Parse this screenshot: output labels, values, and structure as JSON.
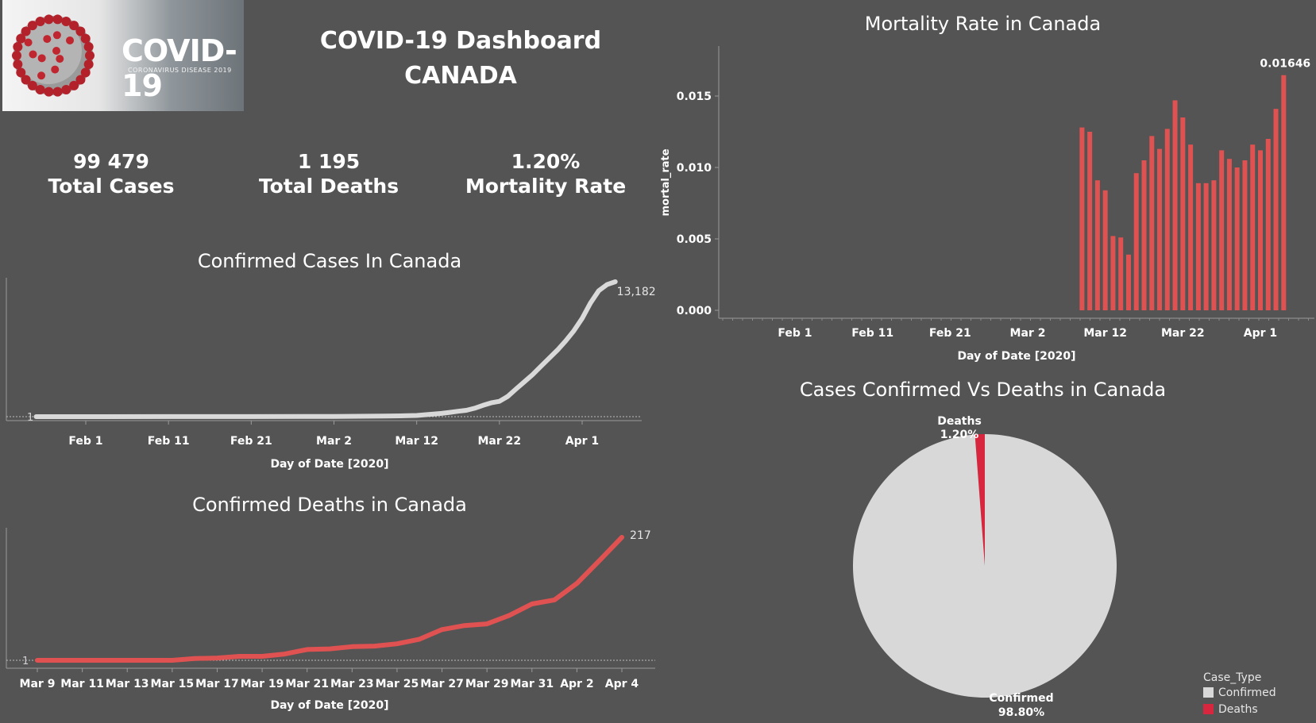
{
  "logo": {
    "title": "COVID-19",
    "subtitle": "CORONAVIRUS DISEASE 2019"
  },
  "header": {
    "title_line1": "COVID-19 Dashboard",
    "title_line2": "CANADA"
  },
  "kpis": [
    {
      "value": "99 479",
      "label": "Total Cases"
    },
    {
      "value": "1 195",
      "label": "Total Deaths"
    },
    {
      "value": "1.20%",
      "label": "Mortality Rate"
    }
  ],
  "colors": {
    "background": "#545454",
    "cases_line": "#d9d9d9",
    "deaths_line": "#e05252",
    "bars": "#e05252",
    "pie_confirmed": "#d8d8d8",
    "pie_deaths": "#d7263d"
  },
  "chart_data": [
    {
      "id": "confirmed_cases",
      "type": "line",
      "title": "Confirmed Cases In Canada",
      "xlabel": "Day of Date [2020]",
      "x_ticks": [
        "Feb 1",
        "Feb 11",
        "Feb 21",
        "Mar 2",
        "Mar 12",
        "Mar 22",
        "Apr 1"
      ],
      "y_ref_label": "1",
      "end_label": "13,182",
      "x": [
        "Jan 26",
        "Feb 1",
        "Feb 11",
        "Feb 21",
        "Mar 2",
        "Mar 5",
        "Mar 8",
        "Mar 10",
        "Mar 12",
        "Mar 13",
        "Mar 14",
        "Mar 15",
        "Mar 16",
        "Mar 17",
        "Mar 18",
        "Mar 19",
        "Mar 20",
        "Mar 21",
        "Mar 22",
        "Mar 23",
        "Mar 24",
        "Mar 25",
        "Mar 26",
        "Mar 27",
        "Mar 28",
        "Mar 29",
        "Mar 30",
        "Mar 31",
        "Apr 1",
        "Apr 2",
        "Apr 3",
        "Apr 4",
        "Apr 5"
      ],
      "values": [
        1,
        4,
        7,
        8,
        25,
        40,
        60,
        80,
        120,
        190,
        250,
        320,
        420,
        530,
        620,
        820,
        1100,
        1350,
        1500,
        1980,
        2700,
        3400,
        4100,
        4900,
        5700,
        6500,
        7400,
        8400,
        9600,
        11100,
        12300,
        12900,
        13182
      ]
    },
    {
      "id": "confirmed_deaths",
      "type": "line",
      "title": "Confirmed Deaths in Canada",
      "xlabel": "Day of Date [2020]",
      "x_ticks": [
        "Mar 9",
        "Mar 11",
        "Mar 13",
        "Mar 15",
        "Mar 17",
        "Mar 19",
        "Mar 21",
        "Mar 23",
        "Mar 25",
        "Mar 27",
        "Mar 29",
        "Mar 31",
        "Apr 2",
        "Apr 4"
      ],
      "y_ref_label": "1",
      "end_label": "217",
      "x": [
        "Mar 9",
        "Mar 10",
        "Mar 11",
        "Mar 12",
        "Mar 13",
        "Mar 14",
        "Mar 15",
        "Mar 16",
        "Mar 17",
        "Mar 18",
        "Mar 19",
        "Mar 20",
        "Mar 21",
        "Mar 22",
        "Mar 23",
        "Mar 24",
        "Mar 25",
        "Mar 26",
        "Mar 27",
        "Mar 28",
        "Mar 29",
        "Mar 30",
        "Mar 31",
        "Apr 1",
        "Apr 2",
        "Apr 3",
        "Apr 4"
      ],
      "values": [
        1,
        1,
        1,
        1,
        1,
        1,
        1,
        4,
        5,
        8,
        8,
        12,
        20,
        21,
        25,
        26,
        30,
        38,
        55,
        62,
        65,
        80,
        100,
        107,
        136,
        176,
        217
      ]
    },
    {
      "id": "mortality_rate",
      "type": "bar",
      "title": "Mortality Rate in Canada",
      "xlabel": "Day of Date [2020]",
      "ylabel": "mortal_rate",
      "x_ticks": [
        "Feb 1",
        "Feb 11",
        "Feb 21",
        "Mar 2",
        "Mar 12",
        "Mar 22",
        "Apr 1"
      ],
      "y_ticks": [
        "0.000",
        "0.005",
        "0.010",
        "0.015"
      ],
      "ylim": [
        0,
        0.0175
      ],
      "end_label": "0.01646",
      "x": [
        "Mar 9",
        "Mar 10",
        "Mar 11",
        "Mar 12",
        "Mar 13",
        "Mar 14",
        "Mar 15",
        "Mar 16",
        "Mar 17",
        "Mar 18",
        "Mar 19",
        "Mar 20",
        "Mar 21",
        "Mar 22",
        "Mar 23",
        "Mar 24",
        "Mar 25",
        "Mar 26",
        "Mar 27",
        "Mar 28",
        "Mar 29",
        "Mar 30",
        "Mar 31",
        "Apr 1",
        "Apr 2",
        "Apr 3",
        "Apr 4"
      ],
      "values": [
        0.0128,
        0.0125,
        0.0091,
        0.0084,
        0.0052,
        0.0051,
        0.0039,
        0.0096,
        0.0105,
        0.0122,
        0.0113,
        0.0127,
        0.0147,
        0.0135,
        0.0116,
        0.0089,
        0.0089,
        0.0091,
        0.0112,
        0.0106,
        0.01,
        0.0105,
        0.0116,
        0.0112,
        0.012,
        0.0141,
        0.01646
      ]
    },
    {
      "id": "cases_vs_deaths",
      "type": "pie",
      "title": "Cases Confirmed Vs Deaths in Canada",
      "legend_title": "Case_Type",
      "slices": [
        {
          "name": "Confirmed",
          "value": 98.8,
          "label": "98.80%",
          "color": "#d8d8d8"
        },
        {
          "name": "Deaths",
          "value": 1.2,
          "label": "1.20%",
          "color": "#d7263d"
        }
      ]
    }
  ]
}
